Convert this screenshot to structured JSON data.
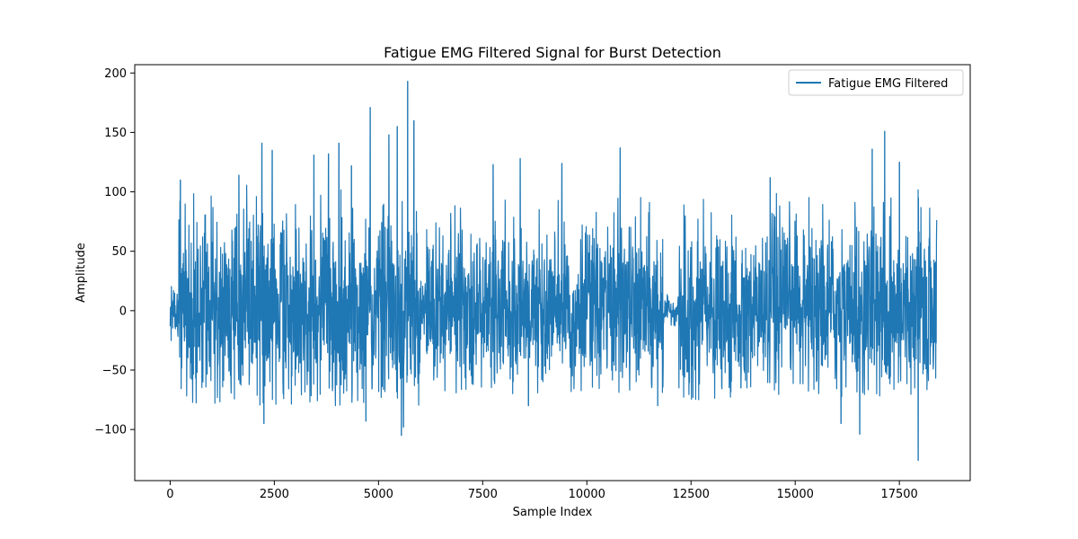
{
  "chart_data": {
    "type": "line",
    "title": "Fatigue EMG Filtered Signal for Burst Detection",
    "xlabel": "Sample Index",
    "ylabel": "Amplitude",
    "xlim": [
      -850,
      19200
    ],
    "ylim": [
      -143,
      207
    ],
    "xticks": [
      0,
      2500,
      5000,
      7500,
      10000,
      12500,
      15000,
      17500
    ],
    "xtick_labels": [
      "0",
      "2500",
      "5000",
      "7500",
      "10000",
      "12500",
      "15000",
      "17500"
    ],
    "yticks": [
      -100,
      -50,
      0,
      50,
      100,
      150,
      200
    ],
    "ytick_labels": [
      "−100",
      "−50",
      "0",
      "50",
      "100",
      "150",
      "200"
    ],
    "grid": false,
    "legend_position": "upper right",
    "series": [
      {
        "name": "Fatigue EMG Filtered",
        "color": "#1f77b4",
        "n_samples": 18400,
        "segments": [
          {
            "x": [
              0,
              200
            ],
            "upper": 25,
            "lower": -20
          },
          {
            "x": [
              200,
              6000
            ],
            "upper": 85,
            "lower": -60
          },
          {
            "x": [
              6000,
              6150
            ],
            "upper": 20,
            "lower": -15
          },
          {
            "x": [
              6150,
              11850
            ],
            "upper": 75,
            "lower": -50
          },
          {
            "x": [
              11850,
              12200
            ],
            "upper": 10,
            "lower": -8
          },
          {
            "x": [
              12200,
              18400
            ],
            "upper": 75,
            "lower": -55
          }
        ],
        "peaks": [
          {
            "x": 245,
            "y": 110
          },
          {
            "x": 1650,
            "y": 114
          },
          {
            "x": 2200,
            "y": 141
          },
          {
            "x": 2450,
            "y": 135
          },
          {
            "x": 3450,
            "y": 131
          },
          {
            "x": 3800,
            "y": 132
          },
          {
            "x": 4050,
            "y": 141
          },
          {
            "x": 4350,
            "y": 122
          },
          {
            "x": 4800,
            "y": 171
          },
          {
            "x": 5250,
            "y": 148
          },
          {
            "x": 5450,
            "y": 155
          },
          {
            "x": 5700,
            "y": 193
          },
          {
            "x": 5850,
            "y": 160
          },
          {
            "x": 7750,
            "y": 123
          },
          {
            "x": 8400,
            "y": 128
          },
          {
            "x": 9400,
            "y": 124
          },
          {
            "x": 10800,
            "y": 137
          },
          {
            "x": 14400,
            "y": 112
          },
          {
            "x": 16850,
            "y": 136
          },
          {
            "x": 17150,
            "y": 151
          },
          {
            "x": 17500,
            "y": 125
          },
          {
            "x": 17950,
            "y": 102
          },
          {
            "x": 2250,
            "y": -95
          },
          {
            "x": 4700,
            "y": -93
          },
          {
            "x": 5550,
            "y": -105
          },
          {
            "x": 5600,
            "y": -98
          },
          {
            "x": 8600,
            "y": -80
          },
          {
            "x": 11700,
            "y": -80
          },
          {
            "x": 13700,
            "y": -65
          },
          {
            "x": 16100,
            "y": -95
          },
          {
            "x": 16550,
            "y": -104
          },
          {
            "x": 17950,
            "y": -126
          }
        ]
      }
    ]
  }
}
